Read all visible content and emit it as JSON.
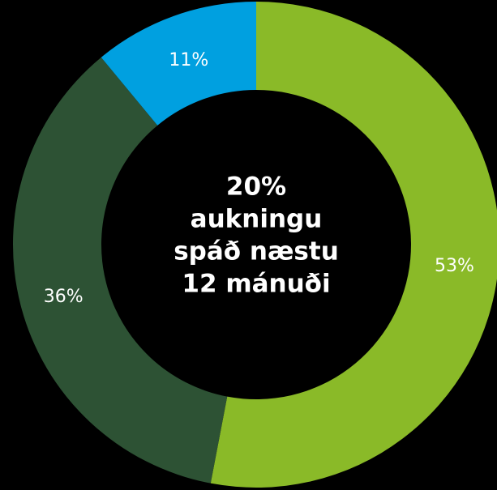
{
  "chart_data": {
    "type": "donut",
    "categories": [
      null,
      null,
      null
    ],
    "values": [
      53,
      36,
      11
    ],
    "value_labels": [
      "53%",
      "36%",
      "11%"
    ],
    "colors": [
      "#8aba28",
      "#2d5234",
      "#00a0e0"
    ],
    "center_text": [
      "20%",
      "aukningu",
      "spáð næstu",
      "12 mánuði"
    ]
  }
}
